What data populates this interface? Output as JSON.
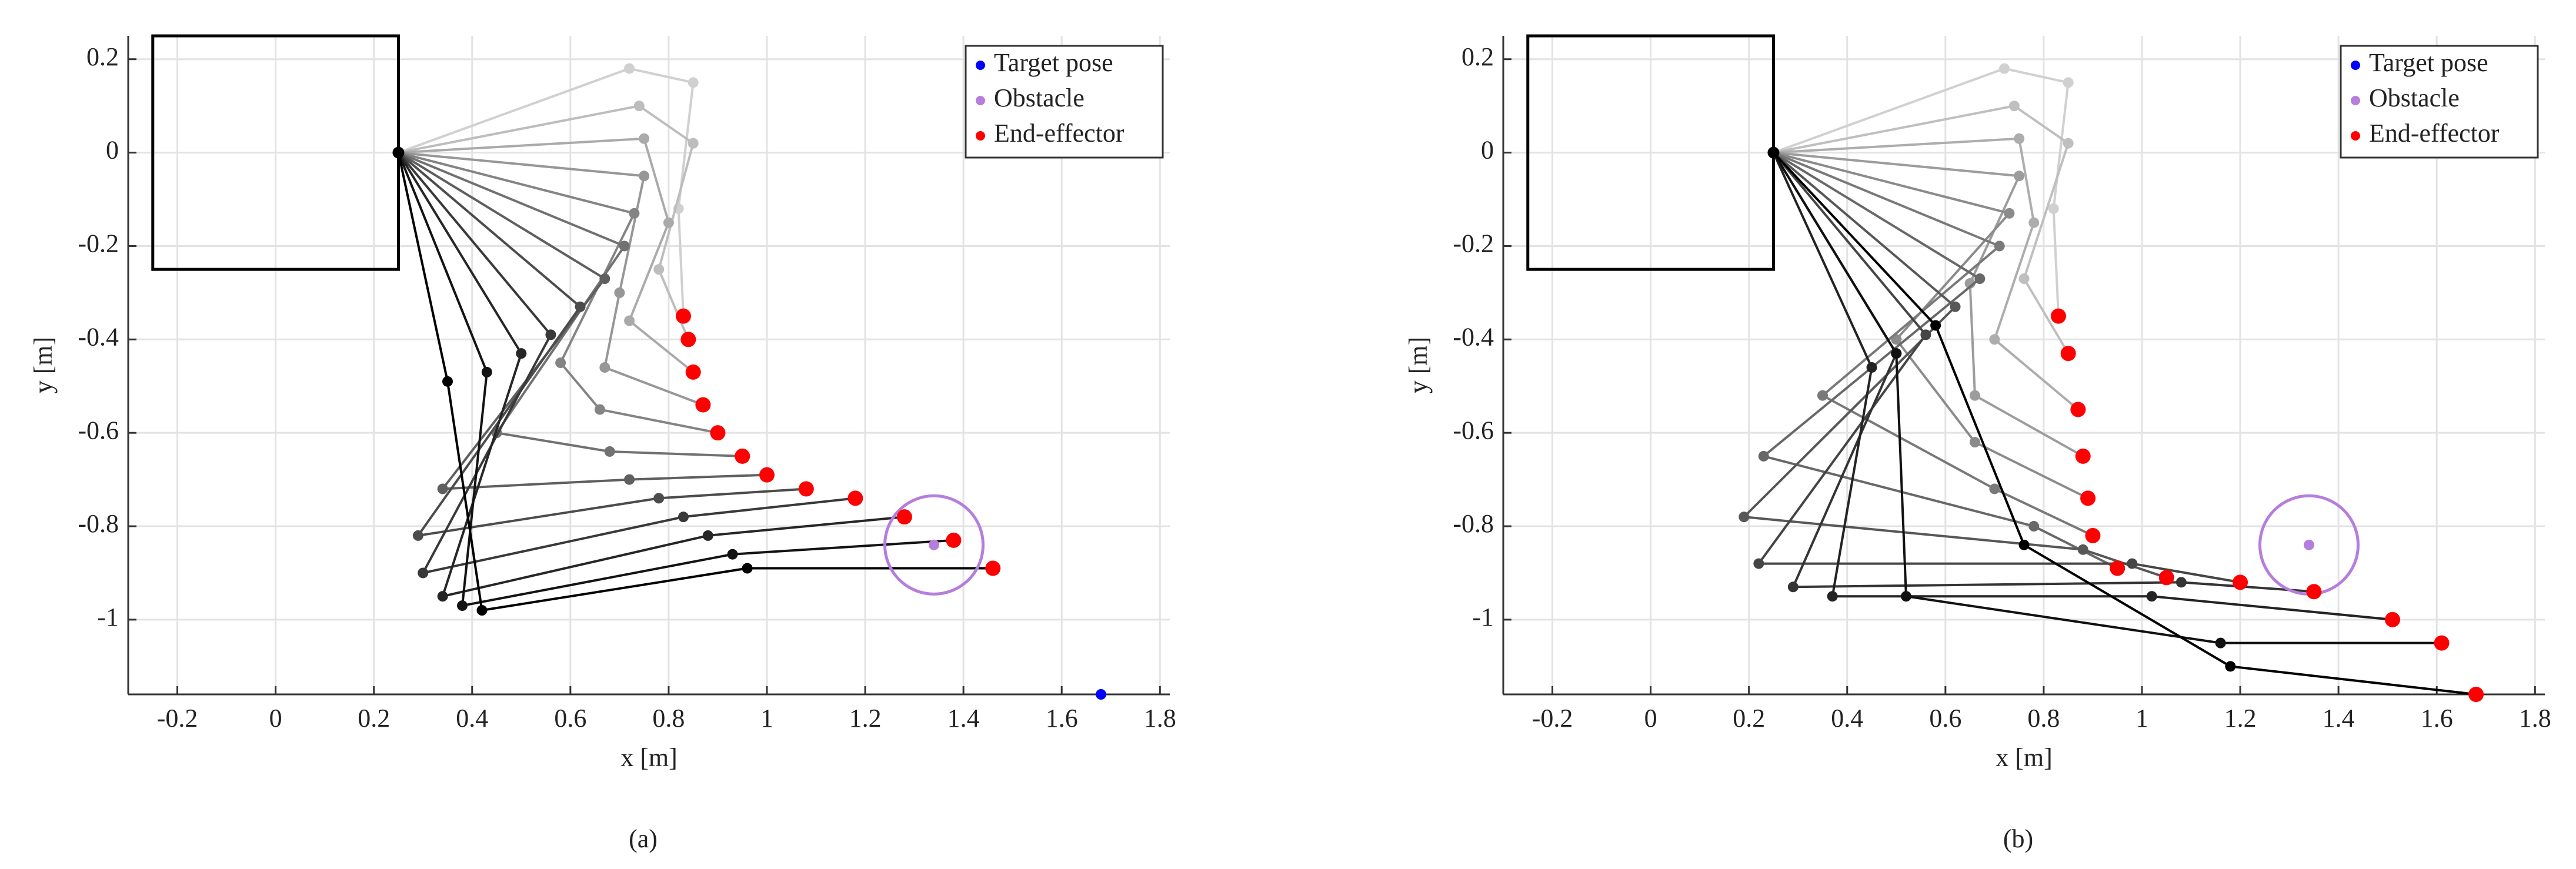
{
  "chart_data": [
    {
      "type": "arm",
      "label": "(a)",
      "xlabel": "x [m]",
      "ylabel": "y [m]",
      "xlim": [
        -0.3,
        1.82
      ],
      "ylim": [
        -1.16,
        0.25
      ],
      "xticks": [
        -0.2,
        0,
        0.2,
        0.4,
        0.6,
        0.8,
        1,
        1.2,
        1.4,
        1.6,
        1.8
      ],
      "yticks": [
        -1,
        -0.8,
        -0.6,
        -0.4,
        -0.2,
        0,
        0.2
      ],
      "grid": true,
      "legend": "upper right",
      "block": {
        "x": [
          -0.25,
          0.25
        ],
        "y": [
          -0.25,
          0.25
        ]
      },
      "base": {
        "x": 0.25,
        "y": 0
      },
      "arm_colors": [
        "#d0d0d0",
        "#000000"
      ],
      "obstacle_radius": 0.1,
      "joints": [
        {
          "x": [
            0.72,
            0.74,
            0.75,
            0.75,
            0.73,
            0.71,
            0.67,
            0.62,
            0.56,
            0.5,
            0.43,
            0.35
          ],
          "y": [
            0.18,
            0.1,
            0.03,
            -0.05,
            -0.13,
            -0.2,
            -0.27,
            -0.33,
            -0.39,
            -0.43,
            -0.47,
            -0.49
          ]
        },
        {
          "x": [
            0.85,
            0.85,
            0.8,
            0.7,
            0.58,
            0.45,
            0.34,
            0.29,
            0.3,
            0.34,
            0.38,
            0.42
          ],
          "y": [
            0.15,
            0.02,
            -0.15,
            -0.3,
            -0.45,
            -0.6,
            -0.72,
            -0.82,
            -0.9,
            -0.95,
            -0.97,
            -0.98
          ]
        },
        {
          "x": [
            0.82,
            0.78,
            0.72,
            0.67,
            0.66,
            0.68,
            0.72,
            0.78,
            0.83,
            0.88,
            0.93,
            0.96
          ],
          "y": [
            -0.12,
            -0.25,
            -0.36,
            -0.46,
            -0.55,
            -0.64,
            -0.7,
            -0.74,
            -0.78,
            -0.82,
            -0.86,
            -0.89
          ]
        }
      ],
      "series": [
        {
          "name": "Target pose",
          "color": "#0000ff",
          "x": [
            1.68
          ],
          "y": [
            -1.16
          ]
        },
        {
          "name": "Obstacle",
          "color": "#b57edc",
          "x": [
            1.34
          ],
          "y": [
            -0.84
          ]
        },
        {
          "name": "End-effector",
          "color": "#ff0000",
          "x": [
            0.83,
            0.84,
            0.85,
            0.87,
            0.9,
            0.95,
            1.0,
            1.08,
            1.18,
            1.28,
            1.38,
            1.46
          ],
          "y": [
            -0.35,
            -0.4,
            -0.47,
            -0.54,
            -0.6,
            -0.65,
            -0.69,
            -0.72,
            -0.74,
            -0.78,
            -0.83,
            -0.89
          ]
        }
      ]
    },
    {
      "type": "arm",
      "label": "(b)",
      "xlabel": "x [m]",
      "ylabel": "y [m]",
      "xlim": [
        -0.3,
        1.82
      ],
      "ylim": [
        -1.16,
        0.25
      ],
      "xticks": [
        -0.2,
        0,
        0.2,
        0.4,
        0.6,
        0.8,
        1,
        1.2,
        1.4,
        1.6,
        1.8
      ],
      "yticks": [
        -1,
        -0.8,
        -0.6,
        -0.4,
        -0.2,
        0,
        0.2
      ],
      "grid": true,
      "legend": "upper right",
      "block": {
        "x": [
          -0.25,
          0.25
        ],
        "y": [
          -0.25,
          0.25
        ]
      },
      "base": {
        "x": 0.25,
        "y": 0
      },
      "arm_colors": [
        "#d0d0d0",
        "#000000"
      ],
      "obstacle_radius": 0.1,
      "joints": [
        {
          "x": [
            0.72,
            0.74,
            0.75,
            0.75,
            0.73,
            0.71,
            0.67,
            0.62,
            0.56,
            0.5,
            0.45,
            0.5,
            0.58
          ],
          "y": [
            0.18,
            0.1,
            0.03,
            -0.05,
            -0.13,
            -0.2,
            -0.27,
            -0.33,
            -0.39,
            -0.43,
            -0.46,
            -0.43,
            -0.37
          ]
        },
        {
          "x": [
            0.85,
            0.85,
            0.78,
            0.65,
            0.5,
            0.35,
            0.23,
            0.19,
            0.22,
            0.29,
            0.37,
            0.52,
            0.76
          ],
          "y": [
            0.15,
            0.02,
            -0.15,
            -0.28,
            -0.4,
            -0.52,
            -0.65,
            -0.78,
            -0.88,
            -0.93,
            -0.95,
            -0.95,
            -0.84
          ]
        },
        {
          "x": [
            0.82,
            0.76,
            0.7,
            0.66,
            0.66,
            0.7,
            0.78,
            0.88,
            0.98,
            1.08,
            1.02,
            1.16,
            1.18
          ],
          "y": [
            -0.12,
            -0.27,
            -0.4,
            -0.52,
            -0.62,
            -0.72,
            -0.8,
            -0.85,
            -0.88,
            -0.92,
            -0.95,
            -1.05,
            -1.1
          ]
        }
      ],
      "series": [
        {
          "name": "Target pose",
          "color": "#0000ff",
          "x": [
            1.68
          ],
          "y": [
            -1.16
          ]
        },
        {
          "name": "Obstacle",
          "color": "#b57edc",
          "x": [
            1.34
          ],
          "y": [
            -0.84
          ]
        },
        {
          "name": "End-effector",
          "color": "#ff0000",
          "x": [
            0.83,
            0.85,
            0.87,
            0.88,
            0.89,
            0.9,
            0.95,
            1.05,
            1.2,
            1.35,
            1.51,
            1.61,
            1.68
          ],
          "y": [
            -0.35,
            -0.43,
            -0.55,
            -0.65,
            -0.74,
            -0.82,
            -0.89,
            -0.91,
            -0.92,
            -0.94,
            -1.0,
            -1.05,
            -1.16
          ]
        }
      ]
    }
  ]
}
